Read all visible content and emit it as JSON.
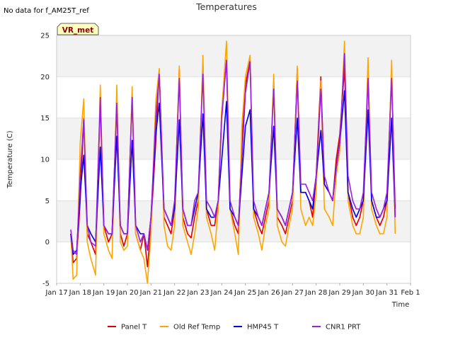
{
  "chart_data": {
    "type": "line",
    "title": "Temperatures",
    "no_data_note": "No data for f_AM25T_ref",
    "site_badge": "VR_met",
    "xlabel": "Time",
    "ylabel": "Temperature (C)",
    "xlim": [
      0,
      15
    ],
    "ylim": [
      -5,
      25
    ],
    "yticks": [
      -5,
      0,
      5,
      10,
      15,
      20,
      25
    ],
    "xtick_positions": [
      0,
      1,
      2,
      3,
      4,
      5,
      6,
      7,
      8,
      9,
      10,
      11,
      12,
      13,
      14,
      15
    ],
    "xtick_labels": [
      "Jan 17",
      "Jan 18",
      "Jan 19",
      "Jan 20",
      "Jan 21",
      "Jan 22",
      "Jan 23",
      "Jan 24",
      "Jan 25",
      "Jan 26",
      "Jan 27",
      "Jan 28",
      "Jan 29",
      "Jan 30",
      "Jan 31",
      "Feb 1"
    ],
    "grid": true,
    "shaded_bands": true,
    "legend_position": "bottom",
    "series": [
      {
        "name": "Panel T",
        "color": "#dd0000",
        "x": [
          0.6,
          0.7,
          0.85,
          1.0,
          1.15,
          1.3,
          1.45,
          1.65,
          1.85,
          2.0,
          2.2,
          2.35,
          2.55,
          2.7,
          2.85,
          3.0,
          3.2,
          3.35,
          3.55,
          3.7,
          3.85,
          4.0,
          4.2,
          4.35,
          4.55,
          4.7,
          4.85,
          5.0,
          5.2,
          5.35,
          5.55,
          5.7,
          5.85,
          6.0,
          6.2,
          6.35,
          6.55,
          6.7,
          6.85,
          7.0,
          7.2,
          7.35,
          7.55,
          7.7,
          7.85,
          8.0,
          8.2,
          8.35,
          8.55,
          8.7,
          8.85,
          9.0,
          9.2,
          9.35,
          9.55,
          9.7,
          9.85,
          10.0,
          10.2,
          10.35,
          10.55,
          10.7,
          10.85,
          11.0,
          11.2,
          11.35,
          11.55,
          11.7,
          11.85,
          12.0,
          12.2,
          12.35,
          12.55,
          12.7,
          12.85,
          13.0,
          13.2,
          13.35,
          13.55,
          13.7,
          13.85,
          14.0,
          14.2,
          14.35
        ],
        "y": [
          1,
          -2.5,
          -2,
          5,
          15,
          1,
          0,
          -1.5,
          17,
          2,
          0,
          1,
          16.5,
          1,
          -0.5,
          1,
          18,
          1,
          -1,
          1,
          -3,
          2,
          12,
          20.8,
          3,
          2,
          1,
          4,
          21,
          3,
          1,
          0.5,
          3,
          5,
          21.5,
          4,
          2,
          2,
          5,
          16,
          22,
          4,
          2,
          1,
          12,
          19,
          22,
          4,
          2,
          1,
          3,
          5,
          19.5,
          3,
          2,
          1,
          3,
          5,
          21,
          6,
          6,
          5,
          3,
          8,
          20,
          7,
          6,
          5,
          10,
          13,
          21,
          6,
          3,
          2,
          3,
          5,
          20,
          5,
          3,
          2,
          3,
          5,
          20.8,
          4
        ]
      },
      {
        "name": "Old Ref Temp",
        "color": "#ffa500",
        "x": [
          0.6,
          0.7,
          0.85,
          1.0,
          1.15,
          1.3,
          1.45,
          1.65,
          1.85,
          2.0,
          2.2,
          2.35,
          2.55,
          2.7,
          2.85,
          3.0,
          3.2,
          3.35,
          3.55,
          3.7,
          3.85,
          4.0,
          4.2,
          4.35,
          4.55,
          4.7,
          4.85,
          5.0,
          5.2,
          5.35,
          5.55,
          5.7,
          5.85,
          6.0,
          6.2,
          6.35,
          6.55,
          6.7,
          6.85,
          7.0,
          7.2,
          7.35,
          7.55,
          7.7,
          7.85,
          8.0,
          8.2,
          8.35,
          8.55,
          8.7,
          8.85,
          9.0,
          9.2,
          9.35,
          9.55,
          9.7,
          9.85,
          10.0,
          10.2,
          10.35,
          10.55,
          10.7,
          10.85,
          11.0,
          11.2,
          11.35,
          11.55,
          11.7,
          11.85,
          12.0,
          12.2,
          12.35,
          12.55,
          12.7,
          12.85,
          13.0,
          13.2,
          13.35,
          13.55,
          13.7,
          13.85,
          14.0,
          14.2,
          14.35
        ],
        "y": [
          1,
          -4.5,
          -4,
          12,
          17.3,
          0,
          -2,
          -4,
          19,
          1,
          -1,
          -2,
          19,
          0,
          -1,
          -0.5,
          18.8,
          1,
          -1,
          -2,
          -5,
          1,
          17,
          21,
          2,
          -0.5,
          -1,
          2,
          21.3,
          2,
          0,
          -1.5,
          1,
          4,
          22.6,
          3,
          1,
          -1,
          4,
          16,
          24.3,
          4,
          1,
          -1.5,
          14,
          20,
          22.6,
          3,
          1,
          -1,
          2,
          4,
          20.3,
          2,
          0,
          -0.5,
          2,
          4,
          21.3,
          4,
          2,
          3,
          2,
          6,
          19.5,
          4,
          3,
          2,
          8,
          11,
          24.3,
          5,
          2,
          1,
          1,
          3,
          22.3,
          4,
          2,
          1,
          1,
          3,
          22,
          1
        ]
      },
      {
        "name": "HMP45 T",
        "color": "#0000dd",
        "x": [
          0.6,
          0.7,
          0.85,
          1.0,
          1.15,
          1.3,
          1.45,
          1.65,
          1.85,
          2.0,
          2.2,
          2.35,
          2.55,
          2.7,
          2.85,
          3.0,
          3.2,
          3.35,
          3.55,
          3.7,
          3.85,
          4.0,
          4.2,
          4.35,
          4.55,
          4.7,
          4.85,
          5.0,
          5.2,
          5.35,
          5.55,
          5.7,
          5.85,
          6.0,
          6.2,
          6.35,
          6.55,
          6.7,
          6.85,
          7.0,
          7.2,
          7.35,
          7.55,
          7.7,
          7.85,
          8.0,
          8.2,
          8.35,
          8.55,
          8.7,
          8.85,
          9.0,
          9.2,
          9.35,
          9.55,
          9.7,
          9.85,
          10.0,
          10.2,
          10.35,
          10.55,
          10.7,
          10.85,
          11.0,
          11.2,
          11.35,
          11.55,
          11.7,
          11.85,
          12.0,
          12.2,
          12.35,
          12.55,
          12.7,
          12.85,
          13.0,
          13.2,
          13.35,
          13.55,
          13.7,
          13.85,
          14.0,
          14.2,
          14.35
        ],
        "y": [
          1,
          -1.5,
          -1,
          6,
          10.5,
          2,
          1,
          0,
          11.5,
          2,
          1,
          1,
          12.8,
          2,
          1,
          1,
          12.3,
          2,
          1,
          1,
          -1,
          3,
          13,
          16.8,
          4,
          3,
          2,
          4,
          14.8,
          4,
          2,
          2,
          4,
          6,
          15.5,
          4,
          3,
          3,
          5,
          10,
          17,
          4,
          3,
          2,
          8,
          14,
          16,
          4,
          3,
          2,
          4,
          6,
          14,
          4,
          3,
          2,
          4,
          6,
          15,
          6,
          6,
          5,
          4,
          8,
          13.5,
          7,
          6,
          5,
          9,
          12,
          18.3,
          6,
          4,
          3,
          4,
          5,
          16,
          5,
          3,
          3,
          4,
          5,
          15,
          3
        ]
      },
      {
        "name": "CNR1 PRT",
        "color": "#9a1fe0",
        "x": [
          0.6,
          0.7,
          0.85,
          1.0,
          1.15,
          1.3,
          1.45,
          1.65,
          1.85,
          2.0,
          2.2,
          2.35,
          2.55,
          2.7,
          2.85,
          3.0,
          3.2,
          3.35,
          3.55,
          3.7,
          3.85,
          4.0,
          4.2,
          4.35,
          4.55,
          4.7,
          4.85,
          5.0,
          5.2,
          5.35,
          5.55,
          5.7,
          5.85,
          6.0,
          6.2,
          6.35,
          6.55,
          6.7,
          6.85,
          7.0,
          7.2,
          7.35,
          7.55,
          7.7,
          7.85,
          8.0,
          8.2,
          8.35,
          8.55,
          8.7,
          8.85,
          9.0,
          9.2,
          9.35,
          9.55,
          9.7,
          9.85,
          10.0,
          10.2,
          10.35,
          10.55,
          10.7,
          10.85,
          11.0,
          11.2,
          11.35,
          11.55,
          11.7,
          11.85,
          12.0,
          12.2,
          12.35,
          12.55,
          12.7,
          12.85,
          13.0,
          13.2,
          13.35,
          13.55,
          13.7,
          13.85,
          14.0,
          14.2,
          14.35
        ],
        "y": [
          1.5,
          -1,
          -1.5,
          8,
          14.8,
          2,
          0,
          -0.5,
          17.5,
          2,
          1,
          1,
          16.8,
          2,
          1,
          1,
          17.5,
          2,
          0,
          1,
          -1,
          3,
          15,
          20.3,
          4,
          3,
          2,
          5,
          19.8,
          4,
          2,
          2,
          5,
          6,
          20.3,
          5,
          4,
          3,
          5,
          15,
          22,
          5,
          3,
          2,
          10,
          18,
          21.8,
          5,
          3,
          2,
          4,
          6,
          18.5,
          4,
          3,
          2,
          4,
          6,
          19.5,
          7,
          7,
          6,
          5,
          8,
          18.5,
          8,
          6,
          5,
          9,
          12,
          22.8,
          8,
          5,
          4,
          4,
          6,
          19.8,
          6,
          4,
          3,
          4,
          6,
          19.8,
          3
        ]
      }
    ]
  }
}
